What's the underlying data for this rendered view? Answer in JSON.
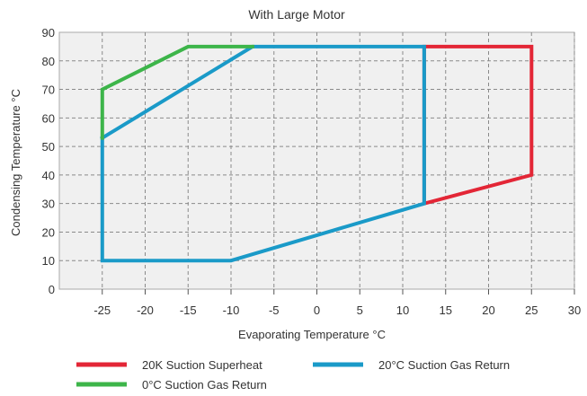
{
  "chart_data": {
    "type": "line",
    "title": "With Large Motor",
    "xlabel": "Evaporating Temperature °C",
    "ylabel": "Condensing Temperature °C",
    "xlim": [
      -30,
      30
    ],
    "ylim": [
      0,
      90
    ],
    "x_ticks": [
      -25,
      -20,
      -15,
      -10,
      -5,
      0,
      5,
      10,
      15,
      20,
      25,
      30
    ],
    "y_ticks": [
      0,
      10,
      20,
      30,
      40,
      50,
      60,
      70,
      80,
      90
    ],
    "grid": true,
    "legend_position": "bottom",
    "series": [
      {
        "name": "20K Suction Superheat",
        "color": "#e32636",
        "points": [
          [
            12.5,
            85
          ],
          [
            25,
            85
          ],
          [
            25,
            40
          ],
          [
            12.5,
            30
          ],
          [
            12.5,
            85
          ]
        ]
      },
      {
        "name": "20°C Suction Gas Return",
        "color": "#1a9ac8",
        "points": [
          [
            -25,
            53
          ],
          [
            -7.5,
            85
          ],
          [
            12.5,
            85
          ],
          [
            12.5,
            30
          ],
          [
            -10,
            10
          ],
          [
            -25,
            10
          ],
          [
            -25,
            53
          ]
        ]
      },
      {
        "name": "0°C Suction Gas Return",
        "color": "#3db54a",
        "points": [
          [
            -25,
            53
          ],
          [
            -25,
            70
          ],
          [
            -15,
            85
          ],
          [
            -7.5,
            85
          ]
        ]
      }
    ]
  }
}
